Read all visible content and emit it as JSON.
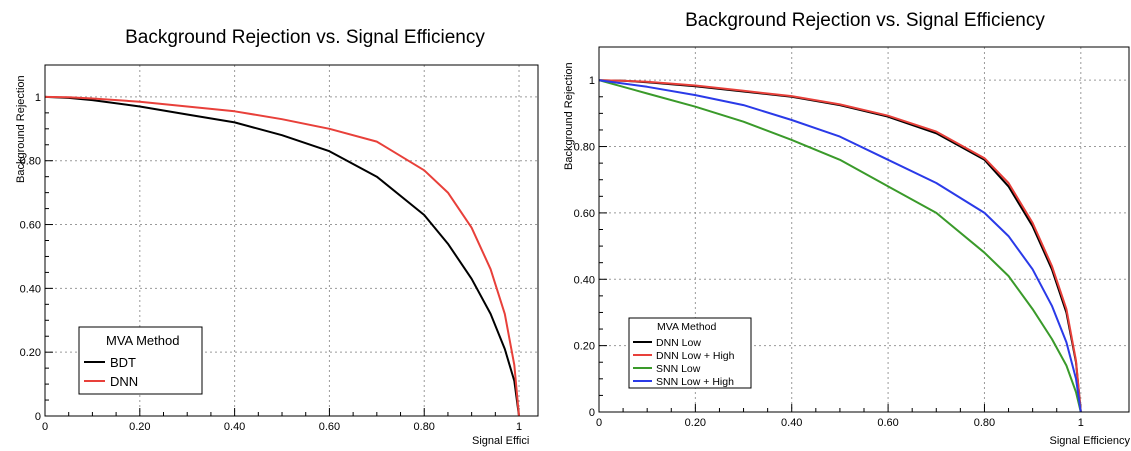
{
  "chart_data": [
    {
      "type": "line",
      "title": "Background Rejection vs. Signal Efficiency",
      "xlabel": "Signal Effici",
      "ylabel": "Background Rejection",
      "xlim": [
        0,
        1.04
      ],
      "ylim": [
        0,
        1.1
      ],
      "x_ticks": [
        {
          "value": 0,
          "label": "0"
        },
        {
          "value": 0.2,
          "label": "0.20"
        },
        {
          "value": 0.4,
          "label": "0.40"
        },
        {
          "value": 0.6,
          "label": "0.60"
        },
        {
          "value": 0.8,
          "label": "0.80"
        },
        {
          "value": 1,
          "label": "1"
        }
      ],
      "y_ticks": [
        {
          "value": 0,
          "label": "0"
        },
        {
          "value": 0.2,
          "label": "0.20"
        },
        {
          "value": 0.4,
          "label": "0.40"
        },
        {
          "value": 0.6,
          "label": "0.60"
        },
        {
          "value": 0.8,
          "label": "0.80"
        },
        {
          "value": 1,
          "label": "1"
        }
      ],
      "grid": true,
      "legend": {
        "title": "MVA Method",
        "position": "bottom-left"
      },
      "series": [
        {
          "name": "BDT",
          "color": "#000000",
          "x": [
            0,
            0.05,
            0.1,
            0.2,
            0.3,
            0.4,
            0.5,
            0.6,
            0.7,
            0.8,
            0.85,
            0.9,
            0.94,
            0.97,
            0.99,
            1.0
          ],
          "y": [
            1.0,
            0.997,
            0.99,
            0.97,
            0.945,
            0.92,
            0.88,
            0.83,
            0.75,
            0.63,
            0.54,
            0.43,
            0.32,
            0.21,
            0.11,
            0.0
          ]
        },
        {
          "name": "DNN",
          "color": "#e8403a",
          "x": [
            0,
            0.05,
            0.1,
            0.2,
            0.3,
            0.4,
            0.5,
            0.6,
            0.7,
            0.8,
            0.85,
            0.9,
            0.94,
            0.97,
            0.99,
            1.0
          ],
          "y": [
            1.0,
            0.999,
            0.995,
            0.985,
            0.97,
            0.955,
            0.93,
            0.9,
            0.86,
            0.77,
            0.7,
            0.59,
            0.46,
            0.32,
            0.16,
            0.0
          ]
        }
      ]
    },
    {
      "type": "line",
      "title": "Background Rejection vs. Signal Efficiency",
      "xlabel": "Signal Efficiency",
      "ylabel": "Background Rejection",
      "xlim": [
        0,
        1.1
      ],
      "ylim": [
        0,
        1.1
      ],
      "x_ticks": [
        {
          "value": 0,
          "label": "0"
        },
        {
          "value": 0.2,
          "label": "0.20"
        },
        {
          "value": 0.4,
          "label": "0.40"
        },
        {
          "value": 0.6,
          "label": "0.60"
        },
        {
          "value": 0.8,
          "label": "0.80"
        },
        {
          "value": 1,
          "label": "1"
        }
      ],
      "y_ticks": [
        {
          "value": 0,
          "label": "0"
        },
        {
          "value": 0.2,
          "label": "0.20"
        },
        {
          "value": 0.4,
          "label": "0.40"
        },
        {
          "value": 0.6,
          "label": "0.60"
        },
        {
          "value": 0.8,
          "label": "0.80"
        },
        {
          "value": 1,
          "label": "1"
        }
      ],
      "grid": true,
      "legend": {
        "title": "MVA Method",
        "position": "bottom-left"
      },
      "series": [
        {
          "name": "DNN Low",
          "color": "#000000",
          "x": [
            0,
            0.05,
            0.1,
            0.2,
            0.3,
            0.4,
            0.5,
            0.6,
            0.7,
            0.8,
            0.85,
            0.9,
            0.94,
            0.97,
            0.99,
            1.0
          ],
          "y": [
            1.0,
            0.998,
            0.994,
            0.982,
            0.966,
            0.95,
            0.925,
            0.89,
            0.84,
            0.76,
            0.68,
            0.56,
            0.43,
            0.3,
            0.15,
            0.0
          ]
        },
        {
          "name": "DNN Low + High",
          "color": "#e8403a",
          "x": [
            0,
            0.05,
            0.1,
            0.2,
            0.3,
            0.4,
            0.5,
            0.6,
            0.7,
            0.8,
            0.85,
            0.9,
            0.94,
            0.97,
            0.99,
            1.0
          ],
          "y": [
            1.0,
            0.998,
            0.995,
            0.984,
            0.968,
            0.952,
            0.927,
            0.893,
            0.845,
            0.765,
            0.69,
            0.57,
            0.44,
            0.31,
            0.155,
            0.0
          ]
        },
        {
          "name": "SNN Low",
          "color": "#3a9a2a",
          "x": [
            0,
            0.05,
            0.1,
            0.2,
            0.3,
            0.4,
            0.5,
            0.6,
            0.7,
            0.8,
            0.85,
            0.9,
            0.94,
            0.97,
            0.99,
            1.0
          ],
          "y": [
            1.0,
            0.98,
            0.96,
            0.92,
            0.875,
            0.82,
            0.76,
            0.68,
            0.6,
            0.48,
            0.41,
            0.31,
            0.22,
            0.14,
            0.06,
            0.0
          ]
        },
        {
          "name": "SNN Low + High",
          "color": "#2a3ae8",
          "x": [
            0,
            0.05,
            0.1,
            0.2,
            0.3,
            0.4,
            0.5,
            0.6,
            0.7,
            0.8,
            0.85,
            0.9,
            0.94,
            0.97,
            0.99,
            1.0
          ],
          "y": [
            1.0,
            0.99,
            0.98,
            0.955,
            0.925,
            0.88,
            0.83,
            0.76,
            0.69,
            0.6,
            0.53,
            0.43,
            0.32,
            0.21,
            0.1,
            0.0
          ]
        }
      ]
    }
  ]
}
